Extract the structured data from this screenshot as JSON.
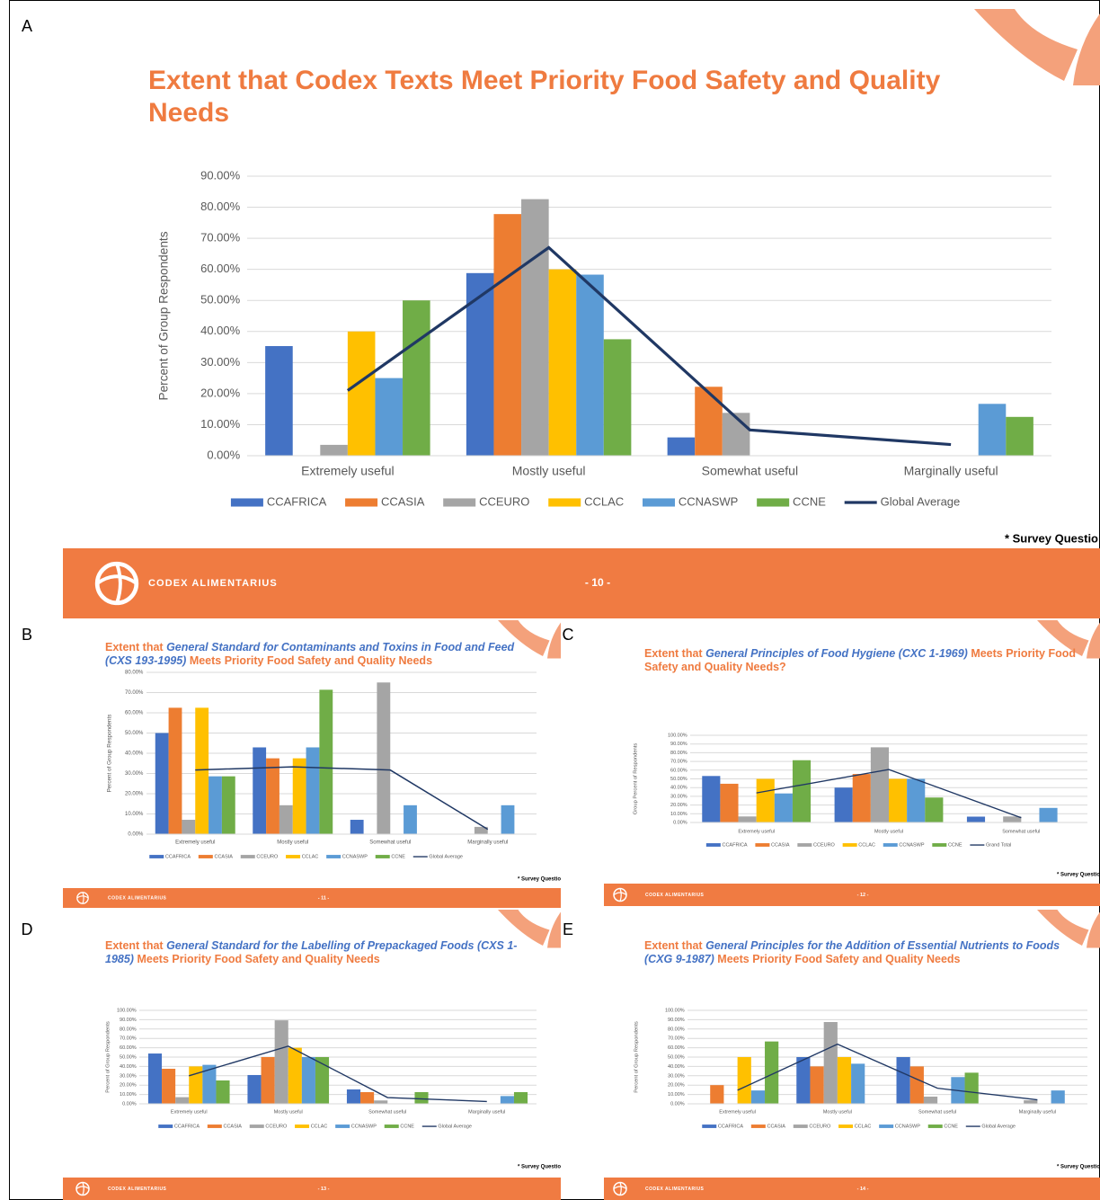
{
  "slides": [
    {
      "label": "A",
      "brand": "CODEX ALIMENTARIUS",
      "page": "- 10 -",
      "note": "* Survey Questio"
    },
    {
      "label": "B",
      "brand": "CODEX ALIMENTARIUS",
      "page": "- 11 -",
      "note": "* Survey Questio"
    },
    {
      "label": "C",
      "brand": "CODEX ALIMENTARIUS",
      "page": "- 12 -",
      "note": "* Survey Questio"
    },
    {
      "label": "D",
      "brand": "CODEX ALIMENTARIUS",
      "page": "- 13 -",
      "note": "* Survey Questio"
    },
    {
      "label": "E",
      "brand": "CODEX ALIMENTARIUS",
      "page": "- 14 -",
      "note": "* Survey Questio"
    }
  ],
  "chart_data": [
    {
      "type": "bar",
      "title": [
        "Extent that Codex Texts Meet Priority Food Safety and Quality Needs"
      ],
      "y_label": "Percent of Group Respondents",
      "categories": [
        "Extremely useful",
        "Mostly useful",
        "Somewhat useful",
        "Marginally useful"
      ],
      "series": [
        {
          "name": "CCAFRICA",
          "color": "#4472c4",
          "values": [
            35.3,
            58.8,
            5.9,
            0
          ]
        },
        {
          "name": "CCASIA",
          "color": "#ed7d31",
          "values": [
            0,
            77.8,
            22.2,
            0
          ]
        },
        {
          "name": "CCEURO",
          "color": "#a5a5a5",
          "values": [
            3.5,
            82.6,
            13.8,
            0
          ]
        },
        {
          "name": "CCLAC",
          "color": "#ffc000",
          "values": [
            40,
            60,
            0,
            0
          ]
        },
        {
          "name": "CCNASWP",
          "color": "#5b9bd5",
          "values": [
            25,
            58.3,
            0,
            16.7
          ]
        },
        {
          "name": "CCNE",
          "color": "#70ad47",
          "values": [
            50,
            37.5,
            0,
            12.5
          ]
        },
        {
          "name": "Global Average",
          "color": "#203864",
          "type": "line",
          "values": [
            21,
            67,
            8.3,
            3.6
          ]
        }
      ],
      "ylim": [
        0,
        90
      ],
      "yticks": [
        {
          "value": 0,
          "label": "0.00%"
        },
        {
          "value": 10,
          "label": "10.00%"
        },
        {
          "value": 20,
          "label": "20.00%"
        },
        {
          "value": 30,
          "label": "30.00%"
        },
        {
          "value": 40,
          "label": "40.00%"
        },
        {
          "value": 50,
          "label": "50.00%"
        },
        {
          "value": 60,
          "label": "60.00%"
        },
        {
          "value": 70,
          "label": "70.00%"
        },
        {
          "value": 80,
          "label": "80.00%"
        },
        {
          "value": 90,
          "label": "90.00%"
        }
      ],
      "grid": true
    },
    {
      "type": "bar",
      "title": [
        "Extent that",
        "General Standard for Contaminants and Toxins in Food and Feed (CXS 193-1995)",
        "Meets Priority Food Safety and Quality Needs"
      ],
      "y_label": "Percent of Group Respondents",
      "categories": [
        "Extremely useful",
        "Mostly useful",
        "Somewhat useful",
        "Marginally useful"
      ],
      "series": [
        {
          "name": "CCAFRICA",
          "color": "#4472c4",
          "values": [
            50,
            42.9,
            7.1,
            0
          ]
        },
        {
          "name": "CCASIA",
          "color": "#ed7d31",
          "values": [
            62.5,
            37.5,
            0,
            0
          ]
        },
        {
          "name": "CCEURO",
          "color": "#a5a5a5",
          "values": [
            7.1,
            14.3,
            75,
            3.6
          ]
        },
        {
          "name": "CCLAC",
          "color": "#ffc000",
          "values": [
            62.5,
            37.5,
            0,
            0
          ]
        },
        {
          "name": "CCNASWP",
          "color": "#5b9bd5",
          "values": [
            28.6,
            42.9,
            14.3,
            14.3
          ]
        },
        {
          "name": "CCNE",
          "color": "#70ad47",
          "values": [
            28.6,
            71.4,
            0,
            0
          ]
        },
        {
          "name": "Global Average",
          "color": "#203864",
          "type": "line",
          "values": [
            31.7,
            33.3,
            31.7,
            2.4
          ]
        }
      ],
      "ylim": [
        0,
        80
      ],
      "yticks": [
        {
          "value": 0,
          "label": "0.00%"
        },
        {
          "value": 10,
          "label": "10.00%"
        },
        {
          "value": 20,
          "label": "20.00%"
        },
        {
          "value": 30,
          "label": "30.00%"
        },
        {
          "value": 40,
          "label": "40.00%"
        },
        {
          "value": 50,
          "label": "50.00%"
        },
        {
          "value": 60,
          "label": "60.00%"
        },
        {
          "value": 70,
          "label": "70.00%"
        },
        {
          "value": 80,
          "label": "80.00%"
        }
      ],
      "grid": true
    },
    {
      "type": "bar",
      "title": [
        "Extent that",
        "General Principles of Food Hygiene (CXC 1-1969)",
        "Meets Priority Food Safety and Quality Needs?"
      ],
      "y_label": "Group Percent of Respondents",
      "categories": [
        "Extremely useful",
        "Mostly useful",
        "Somewhat useful"
      ],
      "series": [
        {
          "name": "CCAFRICA",
          "color": "#4472c4",
          "values": [
            53.3,
            40,
            6.7
          ]
        },
        {
          "name": "CCASIA",
          "color": "#ed7d31",
          "values": [
            44.4,
            55.6,
            0
          ]
        },
        {
          "name": "CCEURO",
          "color": "#a5a5a5",
          "values": [
            6.9,
            86.2,
            6.9
          ]
        },
        {
          "name": "CCLAC",
          "color": "#ffc000",
          "values": [
            50,
            50,
            0
          ]
        },
        {
          "name": "CCNASWP",
          "color": "#5b9bd5",
          "values": [
            33.3,
            50,
            16.7
          ]
        },
        {
          "name": "CCNE",
          "color": "#70ad47",
          "values": [
            71.4,
            28.6,
            0
          ]
        },
        {
          "name": "Grand Total",
          "color": "#203864",
          "type": "line",
          "values": [
            33.9,
            60.7,
            5.4
          ]
        }
      ],
      "ylim": [
        0,
        100
      ],
      "yticks": [
        {
          "value": 0,
          "label": "0.00%"
        },
        {
          "value": 10,
          "label": "10.00%"
        },
        {
          "value": 20,
          "label": "20.00%"
        },
        {
          "value": 30,
          "label": "30.00%"
        },
        {
          "value": 40,
          "label": "40.00%"
        },
        {
          "value": 50,
          "label": "50.00%"
        },
        {
          "value": 60,
          "label": "60.00%"
        },
        {
          "value": 70,
          "label": "70.00%"
        },
        {
          "value": 80,
          "label": "80.00%"
        },
        {
          "value": 90,
          "label": "90.00%"
        },
        {
          "value": 100,
          "label": "100.00%"
        }
      ],
      "grid": true
    },
    {
      "type": "bar",
      "title": [
        "Extent that",
        "General Standard for the Labelling of Prepackaged Foods (CXS 1-1985)",
        "Meets Priority Food Safety and Quality Needs"
      ],
      "y_label": "Percent of Group Respondents",
      "categories": [
        "Extremely useful",
        "Mostly useful",
        "Somewhat useful",
        "Marginally useful"
      ],
      "series": [
        {
          "name": "CCAFRICA",
          "color": "#4472c4",
          "values": [
            53.8,
            30.8,
            15.4,
            0
          ]
        },
        {
          "name": "CCASIA",
          "color": "#ed7d31",
          "values": [
            37.5,
            50,
            12.5,
            0
          ]
        },
        {
          "name": "CCEURO",
          "color": "#a5a5a5",
          "values": [
            7.1,
            89.3,
            3.6,
            0
          ]
        },
        {
          "name": "CCLAC",
          "color": "#ffc000",
          "values": [
            40,
            60,
            0,
            0
          ]
        },
        {
          "name": "CCNASWP",
          "color": "#5b9bd5",
          "values": [
            41.7,
            50,
            0,
            8.3
          ]
        },
        {
          "name": "CCNE",
          "color": "#70ad47",
          "values": [
            25,
            50,
            12.5,
            12.5
          ]
        },
        {
          "name": "Global Average",
          "color": "#203864",
          "type": "line",
          "values": [
            30,
            61.7,
            6.7,
            2.5
          ]
        }
      ],
      "ylim": [
        0,
        100
      ],
      "yticks": [
        {
          "value": 0,
          "label": "0.00%"
        },
        {
          "value": 10,
          "label": "10.00%"
        },
        {
          "value": 20,
          "label": "20.00%"
        },
        {
          "value": 30,
          "label": "30.00%"
        },
        {
          "value": 40,
          "label": "40.00%"
        },
        {
          "value": 50,
          "label": "50.00%"
        },
        {
          "value": 60,
          "label": "60.00%"
        },
        {
          "value": 70,
          "label": "70.00%"
        },
        {
          "value": 80,
          "label": "80.00%"
        },
        {
          "value": 90,
          "label": "90.00%"
        },
        {
          "value": 100,
          "label": "100.00%"
        }
      ],
      "grid": true
    },
    {
      "type": "bar",
      "title": [
        "Extent that",
        "General Principles for the Addition of Essential Nutrients to Foods (CXG 9-1987)",
        "Meets Priority Food Safety and Quality Needs"
      ],
      "y_label": "Percent of Group Respondents",
      "categories": [
        "Extremely useful",
        "Mostly useful",
        "Somewhat useful",
        "Marginally useful"
      ],
      "series": [
        {
          "name": "CCAFRICA",
          "color": "#4472c4",
          "values": [
            0,
            50,
            50,
            0
          ]
        },
        {
          "name": "CCASIA",
          "color": "#ed7d31",
          "values": [
            20,
            40,
            40,
            0
          ]
        },
        {
          "name": "CCEURO",
          "color": "#a5a5a5",
          "values": [
            0,
            87.5,
            7.7,
            3.8
          ]
        },
        {
          "name": "CCLAC",
          "color": "#ffc000",
          "values": [
            50,
            50,
            0,
            0
          ]
        },
        {
          "name": "CCNASWP",
          "color": "#5b9bd5",
          "values": [
            14.3,
            42.9,
            28.6,
            14.3
          ]
        },
        {
          "name": "CCNE",
          "color": "#70ad47",
          "values": [
            66.7,
            0,
            33.3,
            0
          ]
        },
        {
          "name": "Global Average",
          "color": "#203864",
          "type": "line",
          "values": [
            14.6,
            63.8,
            16.7,
            4.3
          ]
        }
      ],
      "ylim": [
        0,
        100
      ],
      "yticks": [
        {
          "value": 0,
          "label": "0.00%"
        },
        {
          "value": 10,
          "label": "10.00%"
        },
        {
          "value": 20,
          "label": "20.00%"
        },
        {
          "value": 30,
          "label": "30.00%"
        },
        {
          "value": 40,
          "label": "40.00%"
        },
        {
          "value": 50,
          "label": "50.00%"
        },
        {
          "value": 60,
          "label": "60.00%"
        },
        {
          "value": 70,
          "label": "70.00%"
        },
        {
          "value": 80,
          "label": "80.00%"
        },
        {
          "value": 90,
          "label": "90.00%"
        },
        {
          "value": 100,
          "label": "100.00%"
        }
      ],
      "grid": true
    }
  ]
}
